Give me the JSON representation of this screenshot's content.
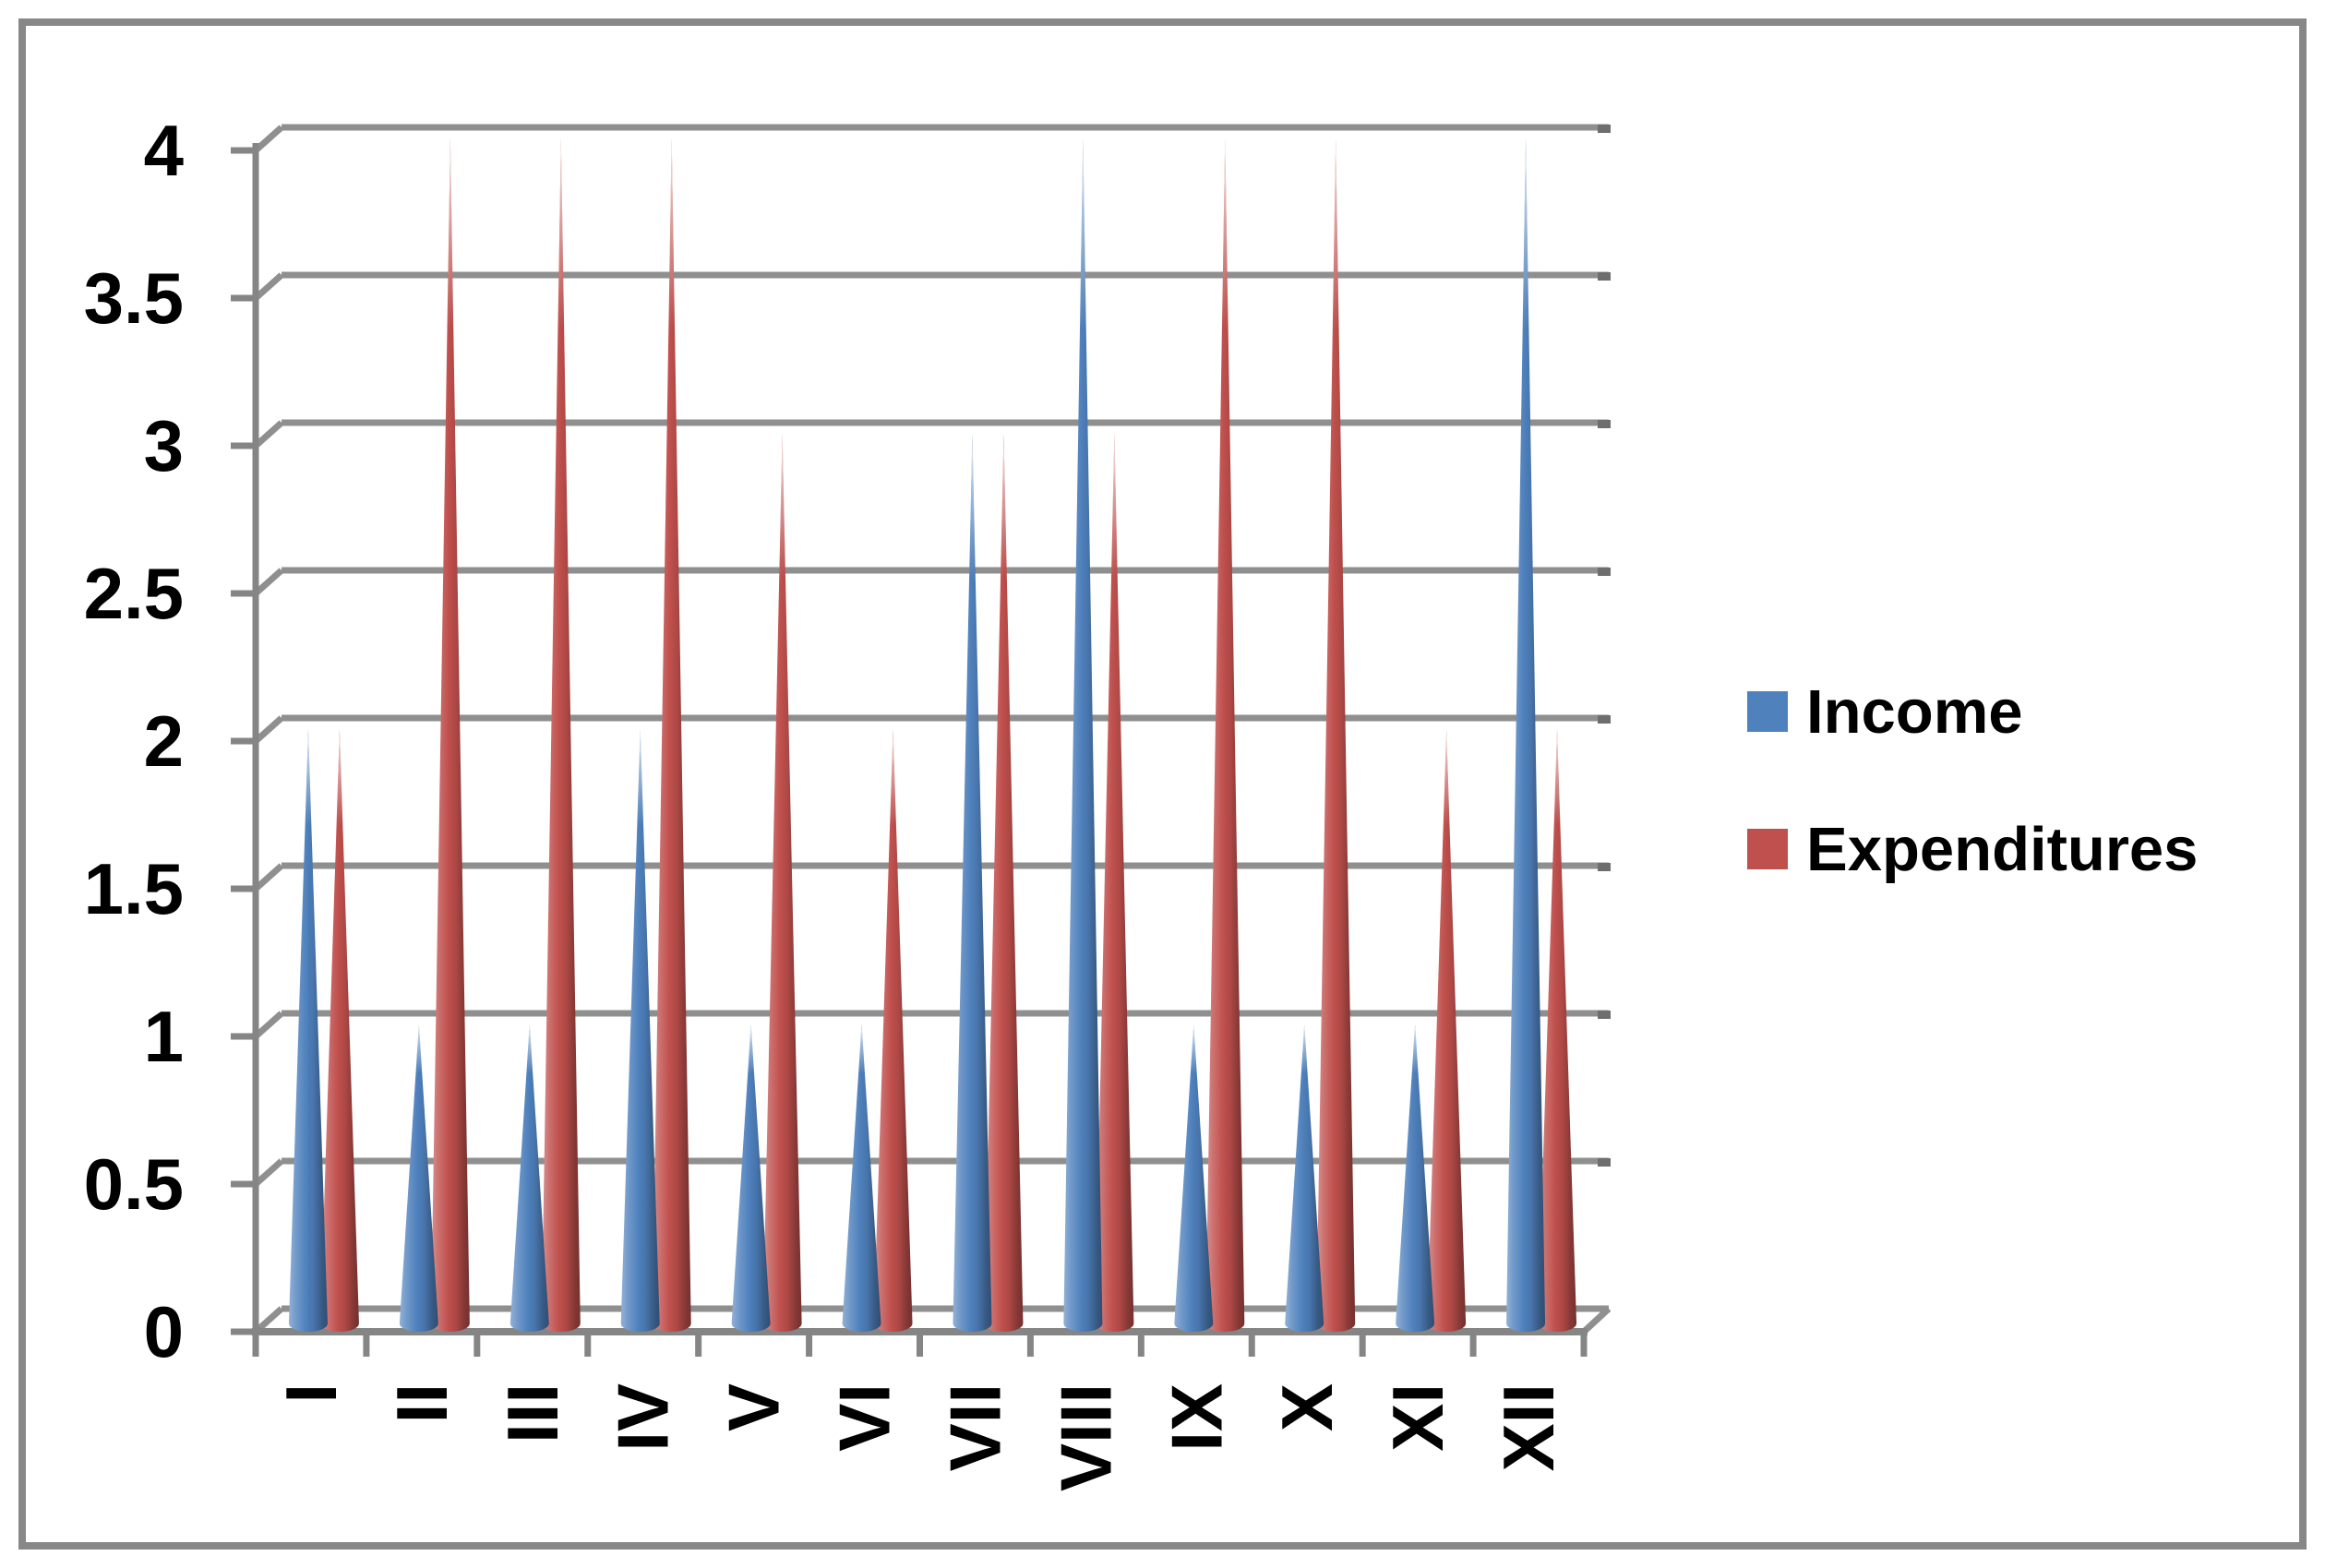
{
  "chart_data": {
    "type": "bar",
    "variant": "3d-cone",
    "title": "",
    "xlabel": "",
    "ylabel": "",
    "categories": [
      "I",
      "II",
      "III",
      "IV",
      "V",
      "VI",
      "VII",
      "VIII",
      "IX",
      "X",
      "XI",
      "XII"
    ],
    "series": [
      {
        "name": "Income",
        "color": "#4F81BD",
        "values": [
          2,
          1,
          1,
          2,
          1,
          1,
          3,
          4,
          1,
          1,
          1,
          4
        ]
      },
      {
        "name": "Expenditures",
        "color": "#C0504D",
        "values": [
          2,
          4,
          4,
          4,
          3,
          2,
          3,
          3,
          4,
          4,
          2,
          2
        ]
      }
    ],
    "ylim": [
      0,
      4
    ],
    "ytick_step": 0.5,
    "yticklabels": [
      "0",
      "0.5",
      "1",
      "1.5",
      "2",
      "2.5",
      "3",
      "3.5",
      "4"
    ],
    "grid": true,
    "legend_position": "right",
    "xticklabel_rotation_deg": 90
  },
  "legend": {
    "items": [
      {
        "label": "Income",
        "color": "#4F81BD"
      },
      {
        "label": "Expenditures",
        "color": "#C0504D"
      }
    ]
  },
  "colors": {
    "frame": "#878787",
    "gridline": "#8f8f8f",
    "gridline_end_cap": "#6e6e6e",
    "axis": "#858585",
    "label_text": "#000000",
    "background": "#ffffff"
  }
}
